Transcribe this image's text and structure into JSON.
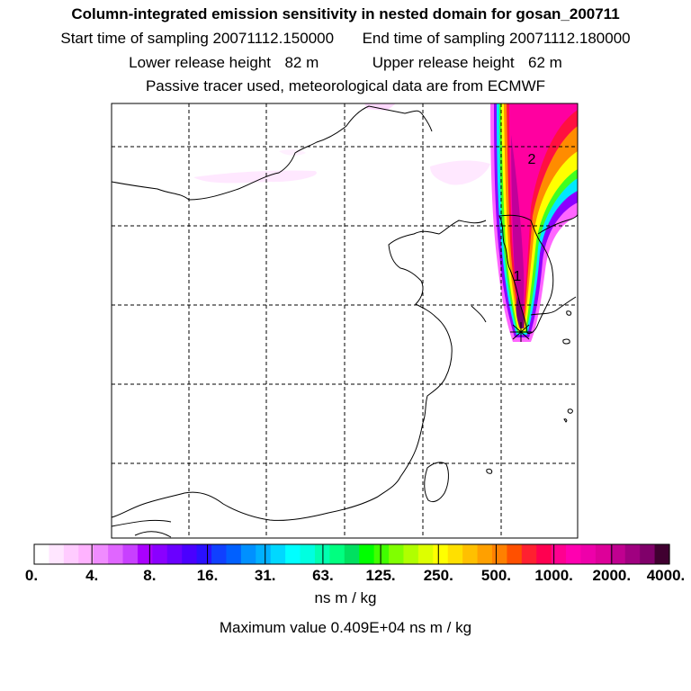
{
  "header": {
    "title": "Column-integrated emission sensitivity in nested domain for gosan_200711",
    "start_label": "Start time of sampling",
    "start_value": "20071112.150000",
    "end_label": "End time of sampling",
    "end_value": "20071112.180000",
    "lower_label": "Lower release height",
    "lower_value": "82 m",
    "upper_label": "Upper release height",
    "upper_value": "62 m",
    "note": "Passive tracer used, meteorological data are from ECMWF"
  },
  "map": {
    "contour_labels": [
      "2",
      "1"
    ],
    "release_marker": "receptor-star-icon"
  },
  "colorbar": {
    "tick_labels": [
      "0.",
      "4.",
      "8.",
      "16.",
      "31.",
      "63.",
      "125.",
      "250.",
      "500.",
      "1000.",
      "2000.",
      "4000."
    ],
    "colors": [
      "#ffffff",
      "#ffe6ff",
      "#ffccff",
      "#ffb3ff",
      "#f08cff",
      "#e066ff",
      "#c840ff",
      "#aa00ff",
      "#8a00ff",
      "#6a00ff",
      "#4a00ff",
      "#2a10ff",
      "#1040ff",
      "#0060ff",
      "#0090ff",
      "#00b0ff",
      "#00d8ff",
      "#00ffff",
      "#00ffe0",
      "#00ffb0",
      "#00ff80",
      "#00e060",
      "#00ff00",
      "#40ff00",
      "#80ff00",
      "#b0ff00",
      "#ddff00",
      "#ffff00",
      "#ffe000",
      "#ffc000",
      "#ffa000",
      "#ff8000",
      "#ff5000",
      "#ff2030",
      "#ff0050",
      "#ff0090",
      "#ff00b0",
      "#ee00aa",
      "#dd0099",
      "#c00090",
      "#a00080",
      "#80006a",
      "#400030"
    ],
    "units": "ns m / kg",
    "max_label": "Maximum value",
    "max_value": "0.409E+04",
    "max_units": "ns m / kg"
  }
}
